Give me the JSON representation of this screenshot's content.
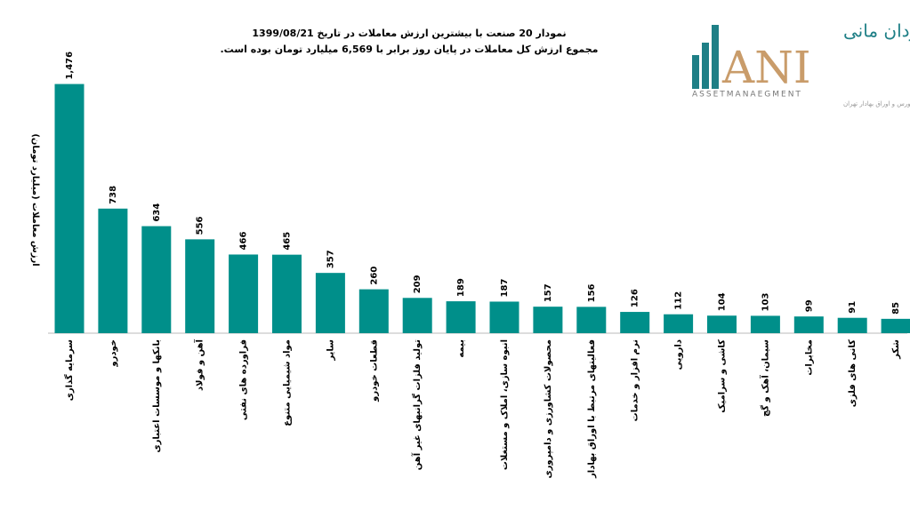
{
  "chart_data": {
    "type": "bar",
    "title": "نمودار  20 صنعت با بیشترین ارزش معاملات در تاریخ 1399/08/21",
    "subtitle": "مجموع ارزش  کل معاملات در پایان روز برابر با 6,569 میلیارد تومان بوده است.",
    "y_label": "ارزش معاملات (میلیارد تومان)",
    "categories": [
      "سرمایه گذاری",
      "خودرو",
      "بانکها و موسسات اعتباری",
      "آهن و فولاد",
      "فراورده های نفتی",
      "مواد شیمیایی متنوع",
      "سایر",
      "قطعات خودرو",
      "تولید فلزات گرانبهای غیر آهن",
      "بیمه",
      "انبوه سازی، املاک و مستغلات",
      "محصولات کشاورزی و دامپروری",
      "فعالیتهای مرتبط با اوراق بهادار",
      "نرم افزار و خدمات",
      "دارویی",
      "کاشی و سرامیک",
      "سیمان، آهک و گچ",
      "مخابرات",
      "کانی های فلزی",
      "شکر"
    ],
    "values": [
      1476,
      738,
      634,
      556,
      466,
      465,
      357,
      260,
      209,
      189,
      187,
      157,
      156,
      126,
      112,
      104,
      103,
      99,
      91,
      85
    ],
    "value_labels": [
      "1,476",
      "738",
      "634",
      "556",
      "466",
      "465",
      "357",
      "260",
      "209",
      "189",
      "187",
      "157",
      "156",
      "126",
      "112",
      "104",
      "103",
      "99",
      "91",
      "85"
    ],
    "color": "#008f8a",
    "ylim": [
      0,
      1500
    ]
  },
  "logo": {
    "name": "سبدگردان مانی",
    "mark": "ANI",
    "english": "ASSETMANAEGMENT",
    "subtitle": "تحت نظارت سازمان بورس و اوراق بهادار تهران"
  }
}
